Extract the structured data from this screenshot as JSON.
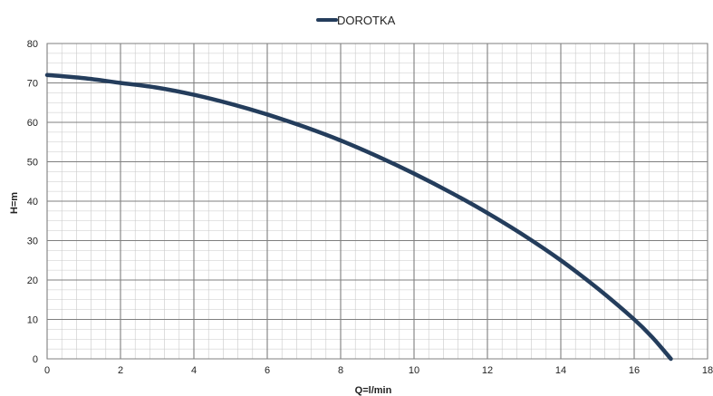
{
  "chart_data": {
    "type": "line",
    "title": "",
    "xlabel": "Q=l/min",
    "ylabel": "H=m",
    "xlim": [
      0,
      18
    ],
    "ylim": [
      0,
      80
    ],
    "x_ticks": [
      "0",
      "2",
      "4",
      "6",
      "8",
      "10",
      "12",
      "14",
      "16",
      "18"
    ],
    "y_ticks": [
      "0",
      "10",
      "20",
      "30",
      "40",
      "50",
      "60",
      "70",
      "80"
    ],
    "grid": true,
    "minor_grid": true,
    "legend_position": "top-center",
    "series": [
      {
        "name": "DOROTKA",
        "color": "#243d5c",
        "x": [
          0,
          1,
          2,
          3,
          4,
          5,
          6,
          7,
          8,
          9,
          10,
          11,
          12,
          13,
          14,
          15,
          16,
          16.5,
          17
        ],
        "values": [
          72,
          71.2,
          70,
          68.8,
          67,
          64.7,
          62,
          58.9,
          55.4,
          51.4,
          47,
          42.2,
          37,
          31.3,
          25,
          17.9,
          10,
          5.4,
          0
        ]
      }
    ]
  }
}
